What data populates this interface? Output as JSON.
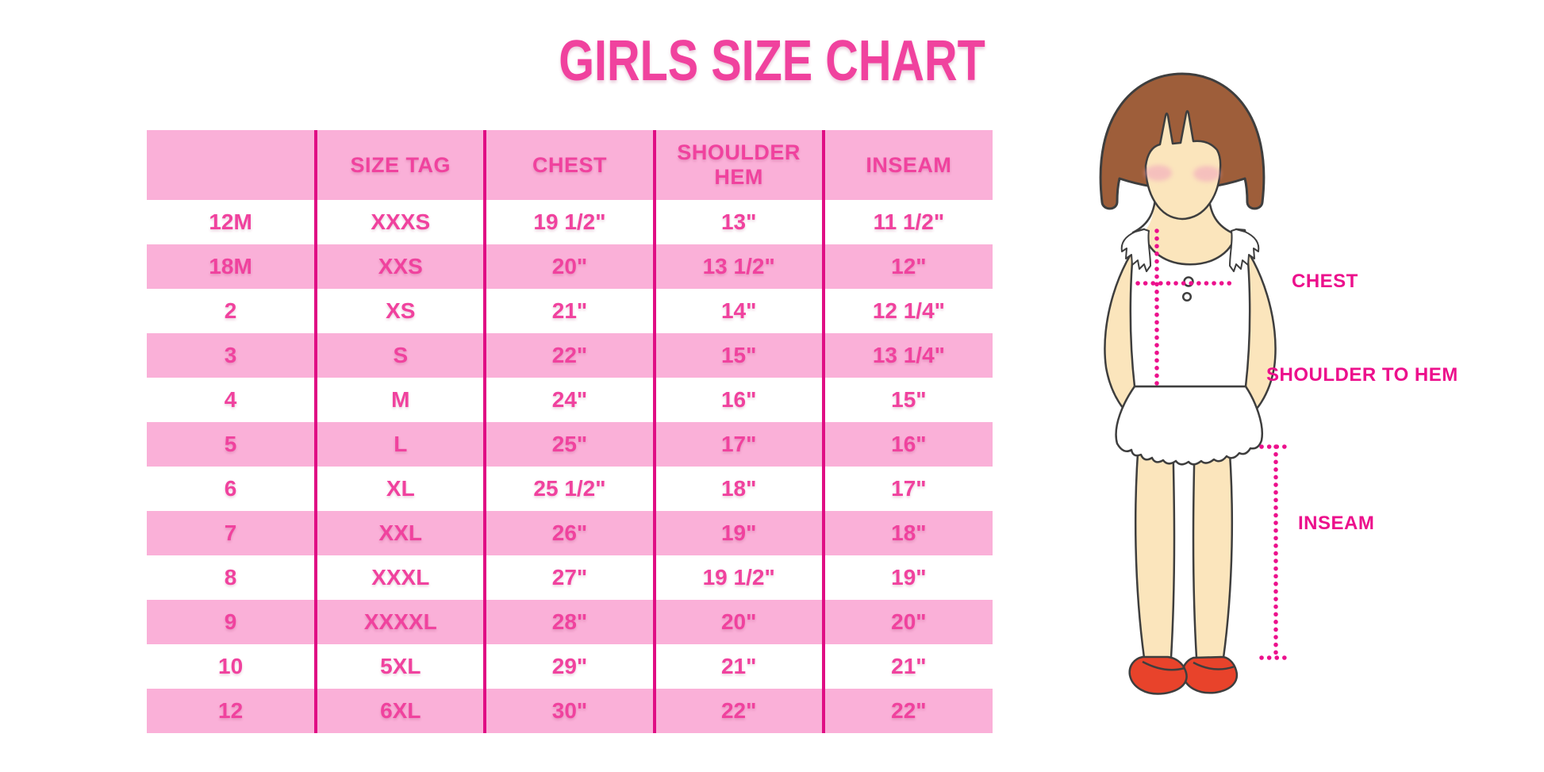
{
  "title": "GIRLS SIZE CHART",
  "chart_data": {
    "type": "table",
    "title": "GIRLS SIZE CHART",
    "columns": [
      "",
      "SIZE TAG",
      "CHEST",
      "SHOULDER HEM",
      "INSEAM"
    ],
    "rows": [
      [
        "12M",
        "XXXS",
        "19 1/2\"",
        "13\"",
        "11 1/2\""
      ],
      [
        "18M",
        "XXS",
        "20\"",
        "13 1/2\"",
        "12\""
      ],
      [
        "2",
        "XS",
        "21\"",
        "14\"",
        "12 1/4\""
      ],
      [
        "3",
        "S",
        "22\"",
        "15\"",
        "13 1/4\""
      ],
      [
        "4",
        "M",
        "24\"",
        "16\"",
        "15\""
      ],
      [
        "5",
        "L",
        "25\"",
        "17\"",
        "16\""
      ],
      [
        "6",
        "XL",
        "25 1/2\"",
        "18\"",
        "17\""
      ],
      [
        "7",
        "XXL",
        "26\"",
        "19\"",
        "18\""
      ],
      [
        "8",
        "XXXL",
        "27\"",
        "19 1/2\"",
        "19\""
      ],
      [
        "9",
        "XXXXL",
        "28\"",
        "20\"",
        "20\""
      ],
      [
        "10",
        "5XL",
        "29\"",
        "21\"",
        "21\""
      ],
      [
        "12",
        "6XL",
        "30\"",
        "22\"",
        "22\""
      ]
    ],
    "legend_position": "none",
    "grid": "column-dividers-only"
  },
  "diagram": {
    "chest_label": "CHEST",
    "shoulder_to_hem_label": "SHOULDER TO HEM",
    "inseam_label": "INSEAM"
  },
  "colors": {
    "title_pink": "#F0429E",
    "row_pink": "#FAB0D8",
    "divider_magenta": "#E00E84",
    "label_magenta": "#EC108C",
    "cell_text": "#F0429E",
    "hair_brown": "#9E5E3A",
    "skin_tone": "#FBE5BC",
    "blush_pink": "#F2A8BE",
    "shoe_red": "#E8432B",
    "outline": "#3E3E3E"
  }
}
